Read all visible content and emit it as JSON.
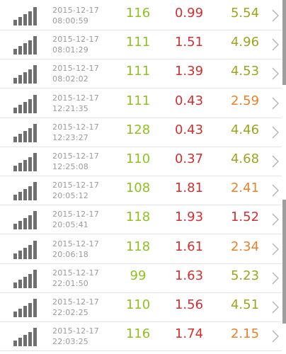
{
  "colors": {
    "green": "#8dc21f",
    "red": "#d32f2f",
    "olive": "#9aa61c",
    "orange": "#e8822a",
    "signal": "#6f6f6f",
    "chevron": "#b0b0b0"
  },
  "icons": {
    "signal": "signal-strength-icon",
    "chevron": "chevron-right-icon"
  },
  "rows": [
    {
      "date": "2015-12-17",
      "time": "08:00:59",
      "v1": "116",
      "v2": "0.99",
      "v3": "5.54",
      "v3color": "olive"
    },
    {
      "date": "2015-12-17",
      "time": "08:01:29",
      "v1": "111",
      "v2": "1.51",
      "v3": "4.96",
      "v3color": "olive"
    },
    {
      "date": "2015-12-17",
      "time": "08:02:02",
      "v1": "111",
      "v2": "1.39",
      "v3": "4.53",
      "v3color": "olive"
    },
    {
      "date": "2015-12-17",
      "time": "12:21:35",
      "v1": "111",
      "v2": "0.43",
      "v3": "2.59",
      "v3color": "orange"
    },
    {
      "date": "2015-12-17",
      "time": "12:23:27",
      "v1": "128",
      "v2": "0.43",
      "v3": "4.46",
      "v3color": "olive"
    },
    {
      "date": "2015-12-17",
      "time": "12:25:08",
      "v1": "110",
      "v2": "0.37",
      "v3": "4.68",
      "v3color": "olive"
    },
    {
      "date": "2015-12-17",
      "time": "20:05:12",
      "v1": "108",
      "v2": "1.81",
      "v3": "2.41",
      "v3color": "orange"
    },
    {
      "date": "2015-12-17",
      "time": "20:05:41",
      "v1": "118",
      "v2": "1.93",
      "v3": "1.52",
      "v3color": "red"
    },
    {
      "date": "2015-12-17",
      "time": "20:06:18",
      "v1": "118",
      "v2": "1.61",
      "v3": "2.34",
      "v3color": "orange"
    },
    {
      "date": "2015-12-17",
      "time": "22:01:50",
      "v1": "99",
      "v2": "1.63",
      "v3": "5.23",
      "v3color": "olive"
    },
    {
      "date": "2015-12-17",
      "time": "22:02:25",
      "v1": "110",
      "v2": "1.56",
      "v3": "4.51",
      "v3color": "olive"
    },
    {
      "date": "2015-12-17",
      "time": "22:03:25",
      "v1": "116",
      "v2": "1.74",
      "v3": "2.15",
      "v3color": "orange"
    }
  ]
}
